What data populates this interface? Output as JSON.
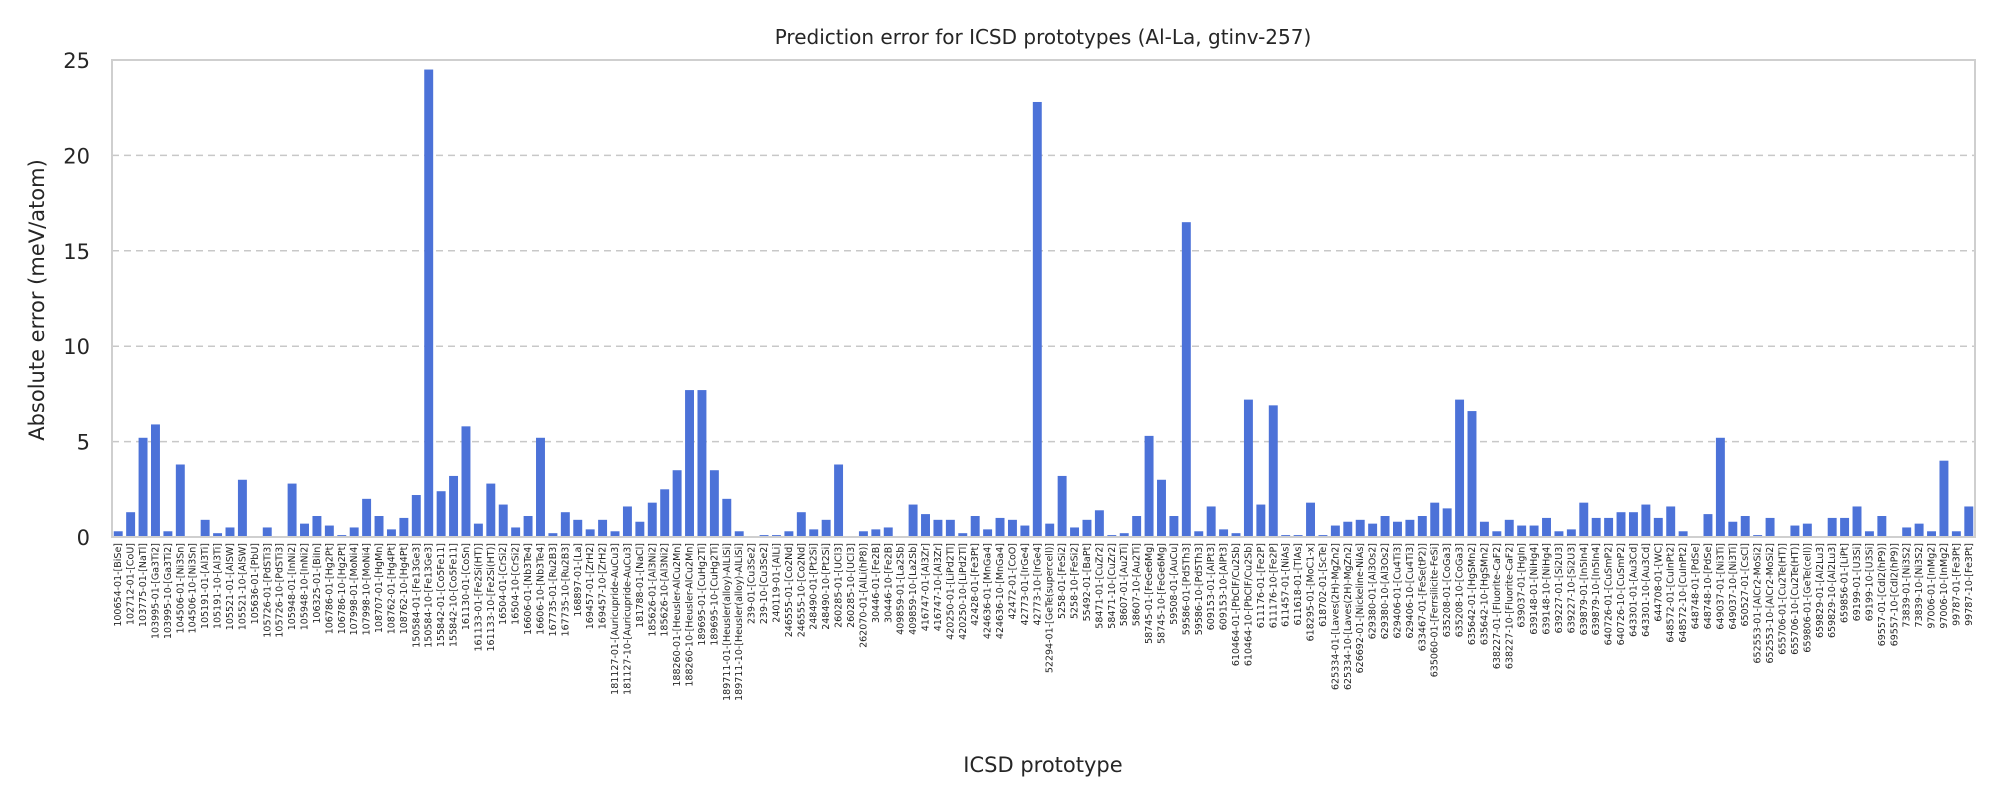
{
  "chart_data": {
    "type": "bar",
    "title": "Prediction error for ICSD prototypes (Al-La, gtinv-257)",
    "xlabel": "ICSD prototype",
    "ylabel": "Absolute error (meV/atom)",
    "ylim": [
      0,
      25
    ],
    "yticks": [
      0,
      5,
      10,
      15,
      20,
      25
    ],
    "grid": "horizontal dashed",
    "bar_color": "#4c72d8",
    "categories": [
      "100654-01-[BiSe]",
      "102712-01-[CoU]",
      "103775-01-[NaTl]",
      "103995-01-[Ga3Ti2]",
      "103995-10-[Ga3Ti2]",
      "104506-01-[Ni3Sn]",
      "104506-10-[Ni3Sn]",
      "105191-01-[Al3Ti]",
      "105191-10-[Al3Ti]",
      "105521-01-[AlSW]",
      "105521-10-[AlSW]",
      "105636-01-[PbU]",
      "105726-01-[PdSTi3]",
      "105726-10-[PdSTi3]",
      "105948-01-[InNi2]",
      "105948-10-[InNi2]",
      "106325-01-[BiIn]",
      "106786-01-[Hg2Pt]",
      "106786-10-[Hg2Pt]",
      "107998-01-[MoNi4]",
      "107998-10-[MoNi4]",
      "108707-01-[HgMn]",
      "108762-01-[Hg4Pt]",
      "108762-10-[Hg4Pt]",
      "150584-01-[Fe13Ge3]",
      "150584-10-[Fe13Ge3]",
      "155842-01-[Co5Fe11]",
      "155842-10-[Co5Fe11]",
      "161130-01-[CoSn]",
      "161133-01-[Fe2Si(HT)]",
      "161133-10-[Fe2Si(HT)]",
      "16504-01-[CrSi2]",
      "16504-10-[CrSi2]",
      "16606-01-[Nb3Te4]",
      "16606-10-[Nb3Te4]",
      "167735-01-[Ru2B3]",
      "167735-10-[Ru2B3]",
      "168897-01-[La]",
      "169457-01-[ZrH2]",
      "169457-10-[ZrH2]",
      "181127-01-[Auricupride-AuCu3]",
      "181127-10-[Auricupride-AuCu3]",
      "181788-01-[NaCl]",
      "185626-01-[Al3Ni2]",
      "185626-10-[Al3Ni2]",
      "188260-01-[Heusler-AlCu2Mn]",
      "188260-10-[Heusler-AlCu2Mn]",
      "189695-01-[CuHg2Ti]",
      "189695-10-[CuHg2Ti]",
      "189711-01-[Heusler(alloy)-AlLiSi]",
      "189711-10-[Heusler(alloy)-AlLiSi]",
      "239-01-[Cu3Se2]",
      "239-10-[Cu3Se2]",
      "240119-01-[AlLi]",
      "246555-01-[Co2Nd]",
      "246555-10-[Co2Nd]",
      "248490-01-[Pt2Si]",
      "248490-10-[Pt2Si]",
      "260285-01-[UCl3]",
      "260285-10-[UCl3]",
      "262070-01-[AlLi(hP8)]",
      "30446-01-[Fe2B]",
      "30446-10-[Fe2B]",
      "409859-01-[La2Sb]",
      "409859-10-[La2Sb]",
      "416747-01-[Al3Zr]",
      "416747-10-[Al3Zr]",
      "420250-01-[LiPd2Tl]",
      "420250-10-[LiPd2Tl]",
      "42428-01-[Fe3Pt]",
      "424636-01-[MnGa4]",
      "424636-10-[MnGa4]",
      "42472-01-[CoO]",
      "42773-01-[IrGe4]",
      "42773-10-[IrGe4]",
      "52294-01-[GeTe(supercell)]",
      "5258-01-[FeSi2]",
      "5258-10-[FeSi2]",
      "55492-01-[BaPt]",
      "58471-01-[CuZr2]",
      "58471-10-[CuZr2]",
      "58607-01-[Au2Ti]",
      "58607-10-[Au2Ti]",
      "58745-01-[FeGe6Mg]",
      "58745-10-[FeGe6Mg]",
      "59508-01-[AuCu]",
      "59586-01-[Pd5Th3]",
      "59586-10-[Pd5Th3]",
      "609153-01-[AlPt3]",
      "609153-10-[AlPt3]",
      "610464-01-[PbClF/Cu2Sb]",
      "610464-10-[PbClF/Cu2Sb]",
      "611176-01-[Fe2P]",
      "611176-10-[Fe2P]",
      "611457-01-[NiAs]",
      "611618-01-[TlAs]",
      "618295-01-[MoC1-x]",
      "618702-01-[ScTe]",
      "625334-01-[Laves(2H)-MgZn2]",
      "625334-10-[Laves(2H)-MgZn2]",
      "626692-01-[Nickeline-NiAs]",
      "629380-01-[Al3Os2]",
      "629380-10-[Al3Os2]",
      "629406-01-[Cu4Ti3]",
      "629406-10-[Cu4Ti3]",
      "633467-01-[FeSe(tP2)]",
      "635060-01-[Ferrsilicite-FeSi]",
      "635208-01-[CoGa3]",
      "635208-10-[CoGa3]",
      "635642-01-[HgSMn2]",
      "635642-10-[HgSMn2]",
      "638227-01-[Fluorite-CaF2]",
      "638227-10-[Fluorite-CaF2]",
      "639037-01-[HgIn]",
      "639148-01-[NiHg4]",
      "639148-10-[NiHg4]",
      "639227-01-[Si2U3]",
      "639227-10-[Si2U3]",
      "639879-01-[In5In4]",
      "639879-10-[In5In4]",
      "640726-01-[CuSmP2]",
      "640726-10-[CuSmP2]",
      "643301-01-[Au3Cd]",
      "643301-10-[Au3Cd]",
      "644708-01-[WC]",
      "648572-01-[CuInPt2]",
      "648572-10-[CuInPt2]",
      "648748-01-[PdSe]",
      "648748-10-[PdSe]",
      "649037-01-[Ni3Ti]",
      "649037-10-[Ni3Ti]",
      "650527-01-[CsCl]",
      "652553-01-[AlCr2-MoSi2]",
      "652553-10-[AlCr2-MoSi2]",
      "655706-01-[Cu2Te(HT)]",
      "655706-10-[Cu2Te(HT)]",
      "659806-01-[GeTe(cell)]",
      "659829-01-[Al2Lu3]",
      "659829-10-[Al2Lu3]",
      "659856-01-[LiPt]",
      "69199-01-[U3Si]",
      "69199-10-[U3Si]",
      "69557-01-[CdI2(hP9)]",
      "69557-10-[CdI2(hP9)]",
      "73839-01-[Ni3S2]",
      "73839-10-[Ni3S2]",
      "97006-01-[InMg2]",
      "97006-10-[InMg2]",
      "99787-01-[Fe3Pt]",
      "99787-10-[Fe3Pt]"
    ],
    "values": [
      0.3,
      1.3,
      5.2,
      5.9,
      0.3,
      3.8,
      0.05,
      0.9,
      0.2,
      0.5,
      3.0,
      0.05,
      0.5,
      0.05,
      2.8,
      0.7,
      1.1,
      0.6,
      0.1,
      0.5,
      2.0,
      1.1,
      0.4,
      1.0,
      2.2,
      24.5,
      2.4,
      3.2,
      5.8,
      0.7,
      2.8,
      1.7,
      0.5,
      1.1,
      5.2,
      0.2,
      1.3,
      0.9,
      0.4,
      0.9,
      0.3,
      1.6,
      0.8,
      1.8,
      2.5,
      3.5,
      7.7,
      7.7,
      3.5,
      2.0,
      0.3,
      0.05,
      0.1,
      0.1,
      0.3,
      1.3,
      0.4,
      0.9,
      3.8,
      0.05,
      0.3,
      0.4,
      0.5,
      0.05,
      1.7,
      1.2,
      0.9,
      0.9,
      0.2,
      1.1,
      0.4,
      1.0,
      0.9,
      0.6,
      22.8,
      0.7,
      3.2,
      0.5,
      0.9,
      1.4,
      0.1,
      0.2,
      1.1,
      5.3,
      3.0,
      1.1,
      16.5,
      0.3,
      1.6,
      0.4,
      0.2,
      7.2,
      1.7,
      6.9,
      0.1,
      0.1,
      1.8,
      0.1,
      0.6,
      0.8,
      0.9,
      0.7,
      1.1,
      0.8,
      0.9,
      1.1,
      1.8,
      1.5,
      7.2,
      6.6,
      0.8,
      0.3,
      0.9,
      0.6,
      0.6,
      1.0,
      0.3,
      0.4,
      1.8,
      1.0,
      1.0,
      1.3,
      1.3,
      1.7,
      1.0,
      1.6,
      0.3,
      0.05,
      1.2,
      5.2,
      0.8,
      1.1,
      0.1,
      1.0,
      0.05,
      0.6,
      0.7,
      0.05,
      1.0,
      1.0,
      1.6,
      0.3,
      1.1,
      0.05,
      0.5,
      0.7,
      0.3,
      4.0,
      0.3,
      1.6
    ]
  }
}
